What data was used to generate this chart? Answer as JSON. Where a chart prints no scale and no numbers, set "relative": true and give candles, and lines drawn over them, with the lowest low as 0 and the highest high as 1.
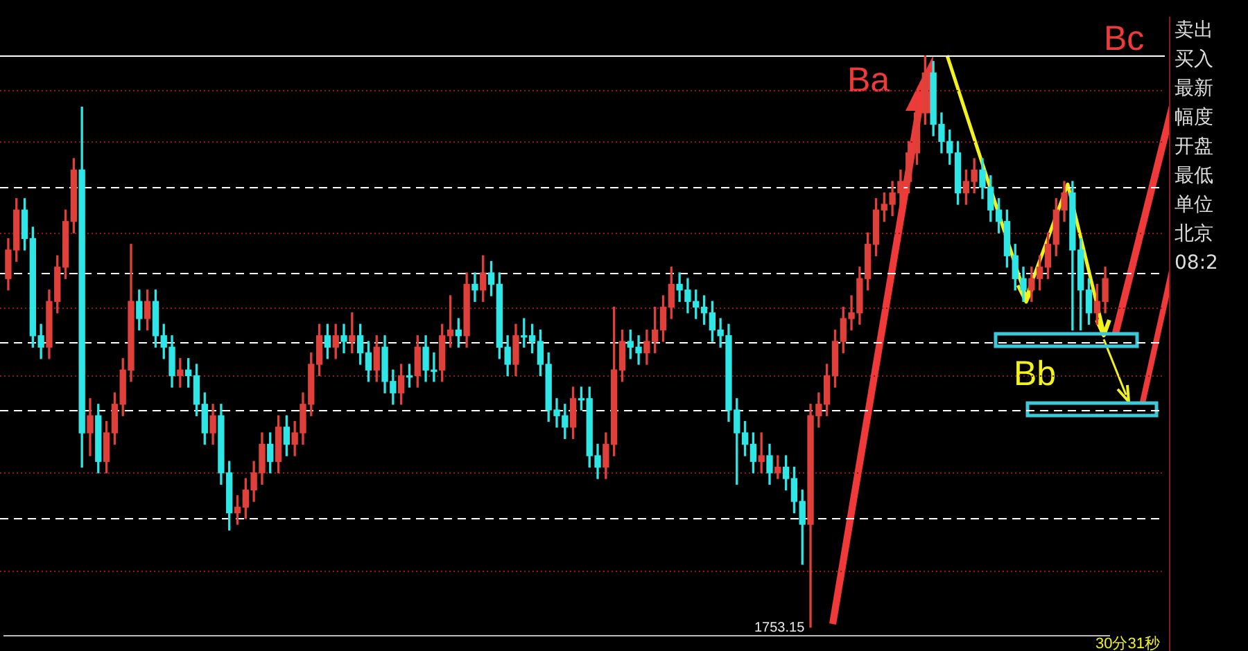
{
  "chart_data": {
    "type": "candlestick",
    "relative": true,
    "legend": false,
    "categories": [
      null,
      null,
      null,
      null,
      null,
      null,
      null,
      null,
      null,
      null,
      null,
      null,
      null,
      null,
      null,
      null,
      null,
      null,
      null,
      null,
      null,
      null,
      null,
      null,
      null,
      null,
      null,
      null,
      null,
      null,
      null,
      null,
      null,
      null,
      null,
      null,
      null,
      null,
      null,
      null,
      null,
      null,
      null,
      null,
      null,
      null,
      null,
      null,
      null,
      null,
      null,
      null,
      null,
      null,
      null,
      null,
      null,
      null,
      null,
      null,
      null,
      null,
      null,
      null,
      null,
      null,
      null,
      null,
      null,
      null,
      null,
      null,
      null,
      null,
      null,
      null,
      null,
      null,
      null,
      null,
      null,
      null,
      null,
      null,
      null,
      null,
      null,
      null,
      null,
      null,
      null,
      null,
      null,
      null,
      null,
      null,
      null,
      null,
      null,
      null,
      null,
      null,
      null,
      null,
      null,
      null,
      null,
      null,
      null,
      null,
      null,
      null,
      null,
      null,
      null,
      null,
      null,
      null,
      null,
      null,
      null,
      null,
      null,
      null,
      null,
      null,
      null,
      null,
      null,
      null,
      null,
      null,
      null,
      null,
      null
    ],
    "ohlc": [
      [
        0.61,
        0.68,
        0.59,
        0.66
      ],
      [
        0.66,
        0.75,
        0.64,
        0.73
      ],
      [
        0.73,
        0.75,
        0.66,
        0.68
      ],
      [
        0.68,
        0.7,
        0.49,
        0.51
      ],
      [
        0.51,
        0.53,
        0.47,
        0.49
      ],
      [
        0.49,
        0.59,
        0.47,
        0.57
      ],
      [
        0.57,
        0.65,
        0.55,
        0.63
      ],
      [
        0.63,
        0.73,
        0.61,
        0.71
      ],
      [
        0.71,
        0.82,
        0.69,
        0.8
      ],
      [
        0.8,
        0.91,
        0.28,
        0.34
      ],
      [
        0.34,
        0.4,
        0.3,
        0.37
      ],
      [
        0.37,
        0.39,
        0.27,
        0.29
      ],
      [
        0.29,
        0.36,
        0.27,
        0.34
      ],
      [
        0.34,
        0.41,
        0.32,
        0.39
      ],
      [
        0.39,
        0.47,
        0.37,
        0.45
      ],
      [
        0.45,
        0.67,
        0.43,
        0.57
      ],
      [
        0.57,
        0.59,
        0.52,
        0.54
      ],
      [
        0.54,
        0.59,
        0.52,
        0.57
      ],
      [
        0.57,
        0.59,
        0.49,
        0.51
      ],
      [
        0.51,
        0.53,
        0.47,
        0.49
      ],
      [
        0.49,
        0.51,
        0.42,
        0.44
      ],
      [
        0.44,
        0.47,
        0.42,
        0.45
      ],
      [
        0.45,
        0.47,
        0.42,
        0.44
      ],
      [
        0.44,
        0.46,
        0.37,
        0.39
      ],
      [
        0.39,
        0.41,
        0.32,
        0.34
      ],
      [
        0.34,
        0.39,
        0.32,
        0.37
      ],
      [
        0.37,
        0.39,
        0.25,
        0.27
      ],
      [
        0.27,
        0.29,
        0.17,
        0.2
      ],
      [
        0.2,
        0.23,
        0.18,
        0.21
      ],
      [
        0.21,
        0.26,
        0.19,
        0.24
      ],
      [
        0.24,
        0.29,
        0.22,
        0.27
      ],
      [
        0.27,
        0.34,
        0.25,
        0.32
      ],
      [
        0.32,
        0.34,
        0.27,
        0.29
      ],
      [
        0.29,
        0.37,
        0.27,
        0.35
      ],
      [
        0.35,
        0.37,
        0.3,
        0.32
      ],
      [
        0.32,
        0.36,
        0.3,
        0.34
      ],
      [
        0.34,
        0.41,
        0.32,
        0.39
      ],
      [
        0.39,
        0.48,
        0.37,
        0.46
      ],
      [
        0.46,
        0.53,
        0.44,
        0.51
      ],
      [
        0.51,
        0.53,
        0.47,
        0.49
      ],
      [
        0.49,
        0.53,
        0.47,
        0.51
      ],
      [
        0.51,
        0.53,
        0.48,
        0.5
      ],
      [
        0.5,
        0.55,
        0.48,
        0.51
      ],
      [
        0.51,
        0.53,
        0.46,
        0.48
      ],
      [
        0.48,
        0.5,
        0.43,
        0.45
      ],
      [
        0.45,
        0.51,
        0.43,
        0.49
      ],
      [
        0.49,
        0.51,
        0.41,
        0.43
      ],
      [
        0.43,
        0.45,
        0.39,
        0.41
      ],
      [
        0.41,
        0.46,
        0.39,
        0.44
      ],
      [
        0.44,
        0.46,
        0.42,
        0.44
      ],
      [
        0.44,
        0.51,
        0.42,
        0.49
      ],
      [
        0.49,
        0.51,
        0.43,
        0.45
      ],
      [
        0.45,
        0.48,
        0.43,
        0.45
      ],
      [
        0.45,
        0.53,
        0.43,
        0.51
      ],
      [
        0.51,
        0.58,
        0.49,
        0.52
      ],
      [
        0.52,
        0.54,
        0.49,
        0.51
      ],
      [
        0.51,
        0.62,
        0.49,
        0.6
      ],
      [
        0.6,
        0.62,
        0.57,
        0.59
      ],
      [
        0.59,
        0.65,
        0.57,
        0.62
      ],
      [
        0.62,
        0.64,
        0.58,
        0.6
      ],
      [
        0.6,
        0.62,
        0.47,
        0.49
      ],
      [
        0.49,
        0.51,
        0.44,
        0.46
      ],
      [
        0.46,
        0.53,
        0.44,
        0.51
      ],
      [
        0.51,
        0.54,
        0.49,
        0.51
      ],
      [
        0.51,
        0.53,
        0.48,
        0.5
      ],
      [
        0.5,
        0.52,
        0.44,
        0.46
      ],
      [
        0.46,
        0.48,
        0.36,
        0.38
      ],
      [
        0.38,
        0.4,
        0.35,
        0.37
      ],
      [
        0.37,
        0.39,
        0.33,
        0.35
      ],
      [
        0.35,
        0.42,
        0.33,
        0.4
      ],
      [
        0.4,
        0.42,
        0.38,
        0.4
      ],
      [
        0.4,
        0.42,
        0.28,
        0.3
      ],
      [
        0.3,
        0.32,
        0.26,
        0.28
      ],
      [
        0.28,
        0.34,
        0.26,
        0.32
      ],
      [
        0.32,
        0.56,
        0.3,
        0.45
      ],
      [
        0.45,
        0.52,
        0.43,
        0.5
      ],
      [
        0.5,
        0.52,
        0.47,
        0.49
      ],
      [
        0.49,
        0.51,
        0.46,
        0.48
      ],
      [
        0.48,
        0.52,
        0.46,
        0.5
      ],
      [
        0.5,
        0.56,
        0.48,
        0.52
      ],
      [
        0.52,
        0.58,
        0.5,
        0.56
      ],
      [
        0.56,
        0.63,
        0.54,
        0.6
      ],
      [
        0.6,
        0.62,
        0.57,
        0.59
      ],
      [
        0.59,
        0.61,
        0.55,
        0.57
      ],
      [
        0.57,
        0.59,
        0.54,
        0.56
      ],
      [
        0.56,
        0.58,
        0.53,
        0.55
      ],
      [
        0.55,
        0.57,
        0.5,
        0.52
      ],
      [
        0.52,
        0.54,
        0.49,
        0.51
      ],
      [
        0.51,
        0.53,
        0.36,
        0.38
      ],
      [
        0.38,
        0.4,
        0.25,
        0.34
      ],
      [
        0.34,
        0.36,
        0.3,
        0.32
      ],
      [
        0.32,
        0.34,
        0.27,
        0.29
      ],
      [
        0.29,
        0.34,
        0.27,
        0.3
      ],
      [
        0.3,
        0.32,
        0.25,
        0.27
      ],
      [
        0.27,
        0.3,
        0.26,
        0.28
      ],
      [
        0.28,
        0.3,
        0.24,
        0.26
      ],
      [
        0.26,
        0.28,
        0.2,
        0.22
      ],
      [
        0.22,
        0.24,
        0.11,
        0.18
      ],
      [
        0.18,
        0.39,
        0.0,
        0.37
      ],
      [
        0.37,
        0.41,
        0.35,
        0.39
      ],
      [
        0.39,
        0.46,
        0.37,
        0.44
      ],
      [
        0.44,
        0.52,
        0.42,
        0.5
      ],
      [
        0.5,
        0.56,
        0.48,
        0.54
      ],
      [
        0.54,
        0.58,
        0.52,
        0.55
      ],
      [
        0.55,
        0.63,
        0.53,
        0.61
      ],
      [
        0.61,
        0.69,
        0.59,
        0.67
      ],
      [
        0.67,
        0.75,
        0.65,
        0.73
      ],
      [
        0.73,
        0.76,
        0.71,
        0.74
      ],
      [
        0.74,
        0.78,
        0.72,
        0.76
      ],
      [
        0.76,
        0.8,
        0.74,
        0.78
      ],
      [
        0.78,
        0.85,
        0.76,
        0.83
      ],
      [
        0.83,
        0.92,
        0.81,
        0.9
      ],
      [
        0.9,
        1.0,
        0.88,
        0.97
      ],
      [
        0.97,
        0.99,
        0.86,
        0.88
      ],
      [
        0.88,
        0.9,
        0.83,
        0.85
      ],
      [
        0.85,
        0.87,
        0.81,
        0.83
      ],
      [
        0.83,
        0.85,
        0.74,
        0.76
      ],
      [
        0.76,
        0.8,
        0.74,
        0.78
      ],
      [
        0.78,
        0.82,
        0.76,
        0.8
      ],
      [
        0.8,
        0.82,
        0.75,
        0.77
      ],
      [
        0.77,
        0.79,
        0.71,
        0.73
      ],
      [
        0.73,
        0.75,
        0.69,
        0.71
      ],
      [
        0.71,
        0.73,
        0.63,
        0.65
      ],
      [
        0.65,
        0.67,
        0.59,
        0.61
      ],
      [
        0.61,
        0.63,
        0.57,
        0.59
      ],
      [
        0.59,
        0.63,
        0.57,
        0.61
      ],
      [
        0.61,
        0.65,
        0.59,
        0.63
      ],
      [
        0.63,
        0.69,
        0.61,
        0.67
      ],
      [
        0.67,
        0.75,
        0.65,
        0.73
      ],
      [
        0.73,
        0.78,
        0.71,
        0.76
      ],
      [
        0.76,
        0.78,
        0.52,
        0.66
      ],
      [
        0.66,
        0.68,
        0.52,
        0.59
      ],
      [
        0.59,
        0.61,
        0.53,
        0.55
      ],
      [
        0.55,
        0.6,
        0.53,
        0.57
      ],
      [
        0.57,
        0.63,
        0.55,
        0.61
      ]
    ],
    "colors": [
      "#e0403a",
      "#e0403a",
      "#2ee6e6",
      "#2ee6e6",
      "#2ee6e6",
      "#e0403a",
      "#e0403a",
      "#e0403a",
      "#e0403a",
      "#2ee6e6",
      "#e0403a",
      "#2ee6e6",
      "#e0403a",
      "#e0403a",
      "#e0403a",
      "#e0403a",
      "#2ee6e6",
      "#e0403a",
      "#2ee6e6",
      "#2ee6e6",
      "#2ee6e6",
      "#e0403a",
      "#2ee6e6",
      "#2ee6e6",
      "#2ee6e6",
      "#e0403a",
      "#2ee6e6",
      "#2ee6e6",
      "#e0403a",
      "#e0403a",
      "#e0403a",
      "#e0403a",
      "#2ee6e6",
      "#e0403a",
      "#2ee6e6",
      "#e0403a",
      "#e0403a",
      "#e0403a",
      "#e0403a",
      "#2ee6e6",
      "#e0403a",
      "#2ee6e6",
      "#e0403a",
      "#2ee6e6",
      "#2ee6e6",
      "#e0403a",
      "#2ee6e6",
      "#2ee6e6",
      "#e0403a",
      "#2ee6e6",
      "#e0403a",
      "#2ee6e6",
      "#2ee6e6",
      "#e0403a",
      "#e0403a",
      "#2ee6e6",
      "#e0403a",
      "#2ee6e6",
      "#e0403a",
      "#2ee6e6",
      "#2ee6e6",
      "#2ee6e6",
      "#e0403a",
      "#2ee6e6",
      "#2ee6e6",
      "#2ee6e6",
      "#2ee6e6",
      "#2ee6e6",
      "#2ee6e6",
      "#e0403a",
      "#2ee6e6",
      "#2ee6e6",
      "#2ee6e6",
      "#e0403a",
      "#e0403a",
      "#e0403a",
      "#2ee6e6",
      "#2ee6e6",
      "#e0403a",
      "#e0403a",
      "#e0403a",
      "#e0403a",
      "#2ee6e6",
      "#2ee6e6",
      "#2ee6e6",
      "#2ee6e6",
      "#2ee6e6",
      "#2ee6e6",
      "#2ee6e6",
      "#2ee6e6",
      "#2ee6e6",
      "#2ee6e6",
      "#e0403a",
      "#2ee6e6",
      "#e0403a",
      "#2ee6e6",
      "#2ee6e6",
      "#2ee6e6",
      "#e0403a",
      "#e0403a",
      "#e0403a",
      "#e0403a",
      "#e0403a",
      "#e0403a",
      "#e0403a",
      "#e0403a",
      "#e0403a",
      "#e0403a",
      "#e0403a",
      "#e0403a",
      "#e0403a",
      "#e0403a",
      "#e0403a",
      "#2ee6e6",
      "#2ee6e6",
      "#2ee6e6",
      "#2ee6e6",
      "#e0403a",
      "#e0403a",
      "#2ee6e6",
      "#2ee6e6",
      "#2ee6e6",
      "#2ee6e6",
      "#2ee6e6",
      "#2ee6e6",
      "#e0403a",
      "#e0403a",
      "#e0403a",
      "#e0403a",
      "#e0403a",
      "#2ee6e6",
      "#2ee6e6",
      "#2ee6e6",
      "#e0403a",
      "#e0403a"
    ],
    "ref_lines": [
      {
        "axis": "y",
        "value": 1.0,
        "color": "#ffffff",
        "line_style": "solid"
      },
      {
        "axis": "y",
        "value": 0.94,
        "color": "#8b1a1a",
        "line_style": "dotted"
      },
      {
        "axis": "y",
        "value": 0.85,
        "color": "#8b1a1a",
        "line_style": "dotted"
      },
      {
        "axis": "y",
        "value": 0.77,
        "color": "#ffffff",
        "line_style": "dashed"
      },
      {
        "axis": "y",
        "value": 0.69,
        "color": "#8b1a1a",
        "line_style": "dotted"
      },
      {
        "axis": "y",
        "value": 0.62,
        "color": "#ffffff",
        "line_style": "dashed"
      },
      {
        "axis": "y",
        "value": 0.56,
        "color": "#8b1a1a",
        "line_style": "dotted"
      },
      {
        "axis": "y",
        "value": 0.5,
        "color": "#ffffff",
        "line_style": "dashed"
      },
      {
        "axis": "y",
        "value": 0.44,
        "color": "#8b1a1a",
        "line_style": "dotted"
      },
      {
        "axis": "y",
        "value": 0.38,
        "color": "#ffffff",
        "line_style": "dashed"
      },
      {
        "axis": "y",
        "value": 0.27,
        "color": "#8b1a1a",
        "line_style": "dotted"
      },
      {
        "axis": "y",
        "value": 0.19,
        "color": "#ffffff",
        "line_style": "dashed"
      },
      {
        "axis": "y",
        "value": 0.1,
        "color": "#8b1a1a",
        "line_style": "dotted"
      }
    ],
    "annotations": [
      "Ba",
      "Bb",
      "Bc",
      "1753.15",
      "30分31秒",
      "卖出",
      "买入",
      "最新",
      "幅度",
      "开盘",
      "最低",
      "单位",
      "北京",
      "08:2"
    ]
  }
}
